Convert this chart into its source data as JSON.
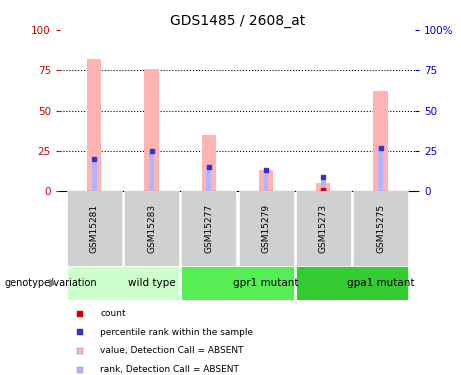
{
  "title": "GDS1485 / 2608_at",
  "samples": [
    "GSM15281",
    "GSM15283",
    "GSM15277",
    "GSM15279",
    "GSM15273",
    "GSM15275"
  ],
  "groups": [
    {
      "name": "wild type",
      "color": "#ccffcc",
      "start": 0,
      "end": 2
    },
    {
      "name": "gpr1 mutant",
      "color": "#55ee55",
      "start": 2,
      "end": 4
    },
    {
      "name": "gpa1 mutant",
      "color": "#33cc33",
      "start": 4,
      "end": 6
    }
  ],
  "bar_values_absent": [
    82,
    76,
    35,
    13,
    5,
    62
  ],
  "rank_values_absent": [
    20,
    25,
    15,
    13,
    9,
    27
  ],
  "count_marker_idx": 4,
  "count_marker_val": 1,
  "ylim": [
    0,
    100
  ],
  "yticks": [
    0,
    25,
    50,
    75,
    100
  ],
  "bar_color_absent": "#ffb3b3",
  "rank_color_absent": "#b3b3ff",
  "count_color": "#cc0000",
  "rank_dot_color": "#3333cc",
  "left_tick_color": "#cc0000",
  "right_tick_color": "#0000cc",
  "legend_items": [
    {
      "label": "count",
      "color": "#cc0000"
    },
    {
      "label": "percentile rank within the sample",
      "color": "#3333cc"
    },
    {
      "label": "value, Detection Call = ABSENT",
      "color": "#ffb3b3"
    },
    {
      "label": "rank, Detection Call = ABSENT",
      "color": "#b3b3ff"
    }
  ],
  "genotype_label": "genotype/variation",
  "bar_width": 0.25,
  "rank_bar_width": 0.08,
  "sample_box_color": "#d0d0d0",
  "right_ytick_labels": [
    "0",
    "25",
    "50",
    "75",
    "100%"
  ]
}
